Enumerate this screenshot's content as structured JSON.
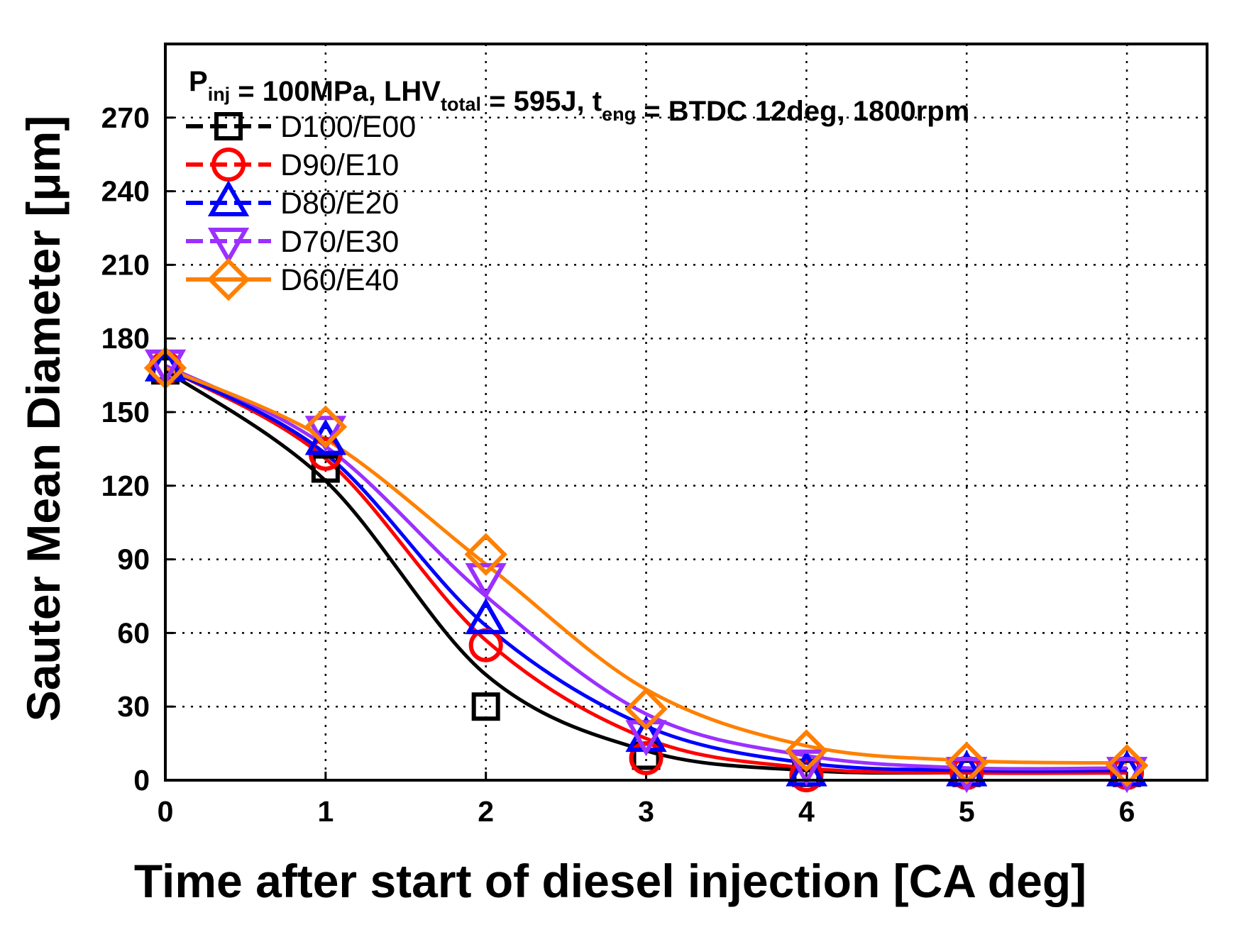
{
  "chart_data": {
    "type": "line",
    "title": "",
    "annotation": {
      "parts": [
        {
          "text": "P",
          "sub": "inj"
        },
        {
          "text": " = 100MPa, LHV",
          "sub": "total"
        },
        {
          "text": " = 595J, t",
          "sub": "eng"
        },
        {
          "text": " = BTDC 12deg, 1800rpm",
          "sub": ""
        }
      ]
    },
    "xlabel": "Time after start of diesel injection [CA deg]",
    "ylabel": "Sauter Mean Diameter [μm]",
    "xlim": [
      0,
      6.5
    ],
    "ylim": [
      0,
      300
    ],
    "xticks": [
      0,
      1,
      2,
      3,
      4,
      5,
      6
    ],
    "yticks": [
      0,
      30,
      60,
      90,
      120,
      150,
      180,
      210,
      240,
      270
    ],
    "grid": true,
    "legend_position": "top-left",
    "series": [
      {
        "name": "D100/E00",
        "color": "#000000",
        "marker": "square",
        "x": [
          0,
          1,
          2,
          3,
          4,
          5,
          6
        ],
        "y": [
          167,
          127,
          30,
          10,
          3,
          3,
          3
        ],
        "fit_y": [
          167,
          122,
          43,
          12,
          4,
          3,
          3
        ]
      },
      {
        "name": "D90/E10",
        "color": "#ff0000",
        "marker": "circle",
        "x": [
          0,
          1,
          2,
          3,
          4,
          5,
          6
        ],
        "y": [
          168,
          133,
          55,
          9,
          2,
          3,
          3
        ],
        "fit_y": [
          168,
          131,
          57,
          17,
          5,
          3,
          3
        ]
      },
      {
        "name": "D80/E20",
        "color": "#0000ff",
        "marker": "triangle-up",
        "x": [
          0,
          1,
          2,
          3,
          4,
          5,
          6
        ],
        "y": [
          168,
          138,
          65,
          17,
          3,
          3,
          3
        ],
        "fit_y": [
          168,
          133,
          63,
          22,
          7,
          4,
          4
        ]
      },
      {
        "name": "D70/E30",
        "color": "#9b30ff",
        "marker": "triangle-down",
        "x": [
          0,
          1,
          2,
          3,
          4,
          5,
          6
        ],
        "y": [
          170,
          143,
          83,
          19,
          7,
          4,
          4
        ],
        "fit_y": [
          169,
          136,
          75,
          27,
          10,
          5,
          5
        ]
      },
      {
        "name": "D60/E40",
        "color": "#ff8000",
        "marker": "diamond",
        "x": [
          0,
          1,
          2,
          3,
          4,
          5,
          6
        ],
        "y": [
          168,
          144,
          92,
          29,
          12,
          7,
          6
        ],
        "fit_y": [
          168,
          139,
          88,
          37,
          14,
          8,
          7
        ]
      }
    ]
  }
}
